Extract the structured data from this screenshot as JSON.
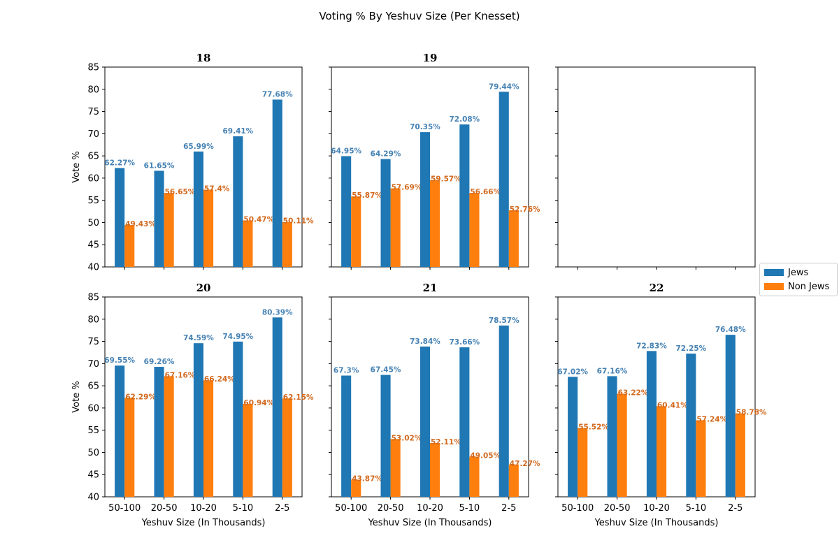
{
  "figure_title": "Voting % By Yeshuv Size (Per Knesset)",
  "colors": {
    "jews": "#1f77b4",
    "non_jews": "#ff7f0e",
    "jews_label": "#4682b4",
    "non_jews_label": "#d2691e"
  },
  "legend": {
    "items": [
      "Jews",
      "Non Jews"
    ]
  },
  "chart_data": [
    {
      "type": "bar",
      "title": "18",
      "categories": [
        "50-100",
        "20-50",
        "10-20",
        "5-10",
        "2-5"
      ],
      "series": [
        {
          "name": "Jews",
          "values": [
            62.27,
            61.65,
            65.99,
            69.41,
            77.68
          ],
          "labels": [
            "62.27%",
            "61.65%",
            "65.99%",
            "69.41%",
            "77.68%"
          ]
        },
        {
          "name": "Non Jews",
          "values": [
            49.43,
            56.65,
            57.4,
            50.47,
            50.11
          ],
          "labels": [
            "49.43%",
            "56.65%",
            "57.4%",
            "50.47%",
            "50.11%"
          ]
        }
      ],
      "ylabel": "Vote %",
      "xlabel": "",
      "yticks": [
        "40",
        "45",
        "50",
        "55",
        "60",
        "65",
        "70",
        "75",
        "80",
        "85"
      ],
      "ylim": [
        40,
        85
      ]
    },
    {
      "type": "bar",
      "title": "19",
      "categories": [
        "50-100",
        "20-50",
        "10-20",
        "5-10",
        "2-5"
      ],
      "series": [
        {
          "name": "Jews",
          "values": [
            64.95,
            64.29,
            70.35,
            72.08,
            79.44
          ],
          "labels": [
            "64.95%",
            "64.29%",
            "70.35%",
            "72.08%",
            "79.44%"
          ]
        },
        {
          "name": "Non Jews",
          "values": [
            55.87,
            57.69,
            59.57,
            56.66,
            52.76
          ],
          "labels": [
            "55.87%",
            "57.69%",
            "59.57%",
            "56.66%",
            "52.76%"
          ]
        }
      ],
      "ylabel": "",
      "xlabel": "",
      "ylim": [
        40,
        85
      ]
    },
    {
      "type": "bar",
      "title": "",
      "categories": [],
      "series": [],
      "ylabel": "",
      "xlabel": "",
      "ylim": [
        40,
        85
      ]
    },
    {
      "type": "bar",
      "title": "20",
      "categories": [
        "50-100",
        "20-50",
        "10-20",
        "5-10",
        "2-5"
      ],
      "series": [
        {
          "name": "Jews",
          "values": [
            69.55,
            69.26,
            74.59,
            74.95,
            80.39
          ],
          "labels": [
            "69.55%",
            "69.26%",
            "74.59%",
            "74.95%",
            "80.39%"
          ]
        },
        {
          "name": "Non Jews",
          "values": [
            62.29,
            67.16,
            66.24,
            60.94,
            62.15
          ],
          "labels": [
            "62.29%",
            "67.16%",
            "66.24%",
            "60.94%",
            "62.15%"
          ]
        }
      ],
      "ylabel": "Vote %",
      "xlabel": "Yeshuv Size (In Thousands)",
      "yticks": [
        "40",
        "45",
        "50",
        "55",
        "60",
        "65",
        "70",
        "75",
        "80",
        "85"
      ],
      "ylim": [
        40,
        85
      ]
    },
    {
      "type": "bar",
      "title": "21",
      "categories": [
        "50-100",
        "20-50",
        "10-20",
        "5-10",
        "2-5"
      ],
      "series": [
        {
          "name": "Jews",
          "values": [
            67.3,
            67.45,
            73.84,
            73.66,
            78.57
          ],
          "labels": [
            "67.3%",
            "67.45%",
            "73.84%",
            "73.66%",
            "78.57%"
          ]
        },
        {
          "name": "Non Jews",
          "values": [
            43.87,
            53.02,
            52.11,
            49.05,
            47.27
          ],
          "labels": [
            "43.87%",
            "53.02%",
            "52.11%",
            "49.05%",
            "47.27%"
          ]
        }
      ],
      "ylabel": "",
      "xlabel": "Yeshuv Size (In Thousands)",
      "ylim": [
        40,
        85
      ]
    },
    {
      "type": "bar",
      "title": "22",
      "categories": [
        "50-100",
        "20-50",
        "10-20",
        "5-10",
        "2-5"
      ],
      "series": [
        {
          "name": "Jews",
          "values": [
            67.02,
            67.16,
            72.83,
            72.25,
            76.48
          ],
          "labels": [
            "67.02%",
            "67.16%",
            "72.83%",
            "72.25%",
            "76.48%"
          ]
        },
        {
          "name": "Non Jews",
          "values": [
            55.52,
            63.22,
            60.41,
            57.24,
            58.78
          ],
          "labels": [
            "55.52%",
            "63.22%",
            "60.41%",
            "57.24%",
            "58.78%"
          ]
        }
      ],
      "ylabel": "",
      "xlabel": "Yeshuv Size (In Thousands)",
      "ylim": [
        40,
        85
      ]
    }
  ]
}
